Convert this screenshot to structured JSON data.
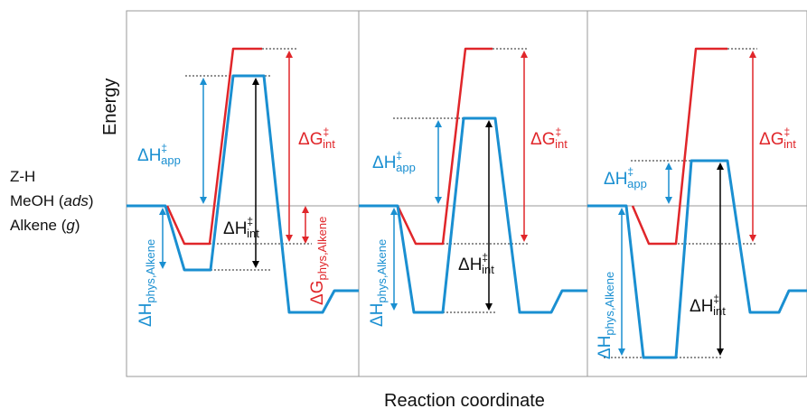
{
  "axis": {
    "y_label": "Energy",
    "x_label": "Reaction coordinate"
  },
  "reference_state": {
    "line1": "Z-H",
    "line2_prefix": "MeOH (",
    "line2_italic": "ads",
    "line2_suffix": ")",
    "line3_prefix": "Alkene (",
    "line3_italic": "g",
    "line3_suffix": ")"
  },
  "symbols": {
    "delta": "ΔH",
    "delta_g": "ΔG",
    "dagger": "‡",
    "sub_app": "app",
    "sub_int": "int",
    "sub_phys": "phys,Alkene"
  },
  "colors": {
    "enthalpy": "#1a8fd1",
    "gibbs": "#e0262a",
    "arrow_black": "#000000",
    "frame": "#9a9a9a"
  }
}
